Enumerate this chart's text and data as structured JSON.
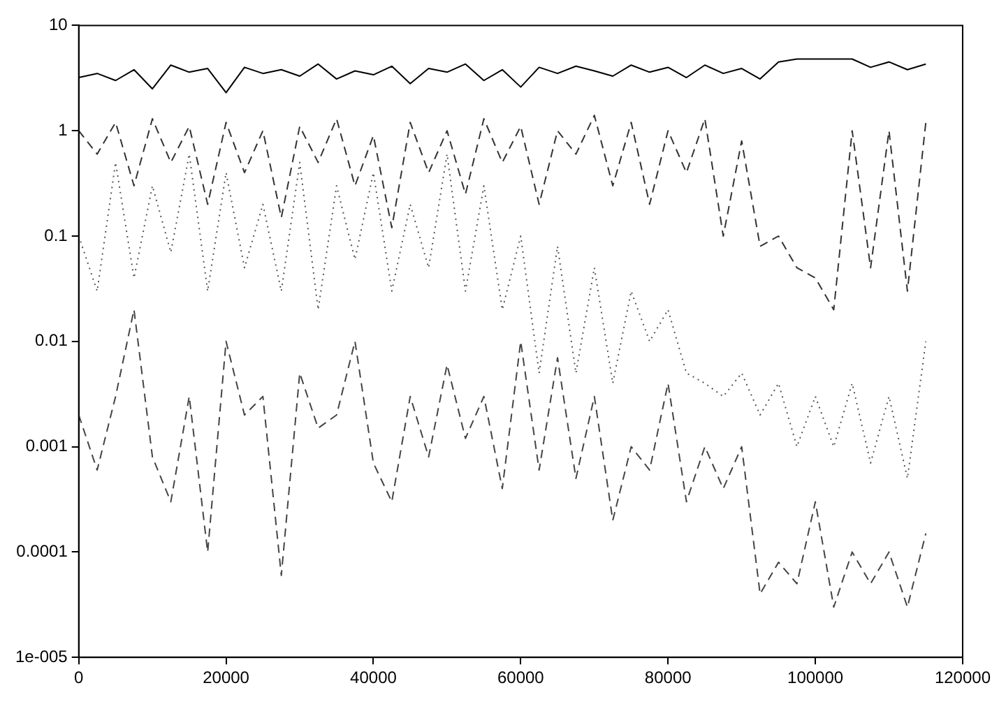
{
  "chart_data": {
    "type": "line",
    "log": "y",
    "grid": false,
    "legend": false,
    "marker": "none",
    "x": [
      0,
      2500,
      5000,
      7500,
      10000,
      12500,
      15000,
      17500,
      20000,
      22500,
      25000,
      27500,
      30000,
      32500,
      35000,
      37500,
      40000,
      42500,
      45000,
      47500,
      50000,
      52500,
      55000,
      57500,
      60000,
      62500,
      65000,
      67500,
      70000,
      72500,
      75000,
      77500,
      80000,
      82500,
      85000,
      87500,
      90000,
      92500,
      95000,
      97500,
      100000,
      102500,
      105000,
      107500,
      110000,
      112500,
      115000
    ],
    "xlim": [
      0,
      120000
    ],
    "xticks": [
      0,
      20000,
      40000,
      60000,
      80000,
      100000,
      120000
    ],
    "ylim": [
      1e-05,
      10
    ],
    "yticks": [
      {
        "value": 1e-05,
        "label": "1e-005"
      },
      0.0001,
      0.001,
      0.01,
      0.1,
      1,
      10
    ],
    "series": [
      {
        "color": "#000000",
        "line_style": "solid",
        "values": [
          3.2,
          3.5,
          3.0,
          3.8,
          2.5,
          4.2,
          3.6,
          3.9,
          2.3,
          4.0,
          3.5,
          3.8,
          3.3,
          4.3,
          3.1,
          3.7,
          3.4,
          4.1,
          2.8,
          3.9,
          3.6,
          4.3,
          3.0,
          3.8,
          2.6,
          4.0,
          3.5,
          4.1,
          3.7,
          3.3,
          4.2,
          3.6,
          4.0,
          3.2,
          4.2,
          3.5,
          3.9,
          3.1,
          4.5,
          4.8,
          4.8,
          4.8,
          4.8,
          4.0,
          4.5,
          3.8,
          4.3
        ]
      },
      {
        "color": "#333333",
        "line_style": "dashed",
        "values": [
          1.0,
          0.6,
          1.2,
          0.3,
          1.3,
          0.5,
          1.1,
          0.2,
          1.2,
          0.4,
          1.0,
          0.15,
          1.1,
          0.5,
          1.3,
          0.3,
          0.9,
          0.12,
          1.2,
          0.4,
          1.0,
          0.25,
          1.3,
          0.5,
          1.1,
          0.2,
          1.0,
          0.6,
          1.4,
          0.3,
          1.2,
          0.2,
          1.0,
          0.4,
          1.3,
          0.1,
          0.8,
          0.08,
          0.1,
          0.05,
          0.04,
          0.02,
          1.0,
          0.05,
          1.0,
          0.03,
          1.2
        ]
      },
      {
        "color": "#555555",
        "line_style": "dotted",
        "values": [
          0.1,
          0.03,
          0.5,
          0.04,
          0.3,
          0.07,
          0.6,
          0.03,
          0.4,
          0.05,
          0.2,
          0.03,
          0.5,
          0.02,
          0.3,
          0.06,
          0.4,
          0.03,
          0.2,
          0.05,
          0.6,
          0.03,
          0.3,
          0.02,
          0.1,
          0.005,
          0.08,
          0.005,
          0.05,
          0.004,
          0.03,
          0.01,
          0.02,
          0.005,
          0.004,
          0.003,
          0.005,
          0.002,
          0.004,
          0.001,
          0.003,
          0.001,
          0.004,
          0.0007,
          0.003,
          0.0005,
          0.01
        ]
      },
      {
        "color": "#444444",
        "line_style": "dashed",
        "values": [
          0.002,
          0.0006,
          0.003,
          0.02,
          0.0008,
          0.0003,
          0.003,
          0.0001,
          0.01,
          0.002,
          0.003,
          6e-05,
          0.005,
          0.0015,
          0.002,
          0.01,
          0.0007,
          0.0003,
          0.003,
          0.0008,
          0.006,
          0.0012,
          0.003,
          0.0004,
          0.01,
          0.0006,
          0.007,
          0.0005,
          0.003,
          0.0002,
          0.001,
          0.0006,
          0.004,
          0.0003,
          0.001,
          0.0004,
          0.001,
          4e-05,
          8e-05,
          5e-05,
          0.0003,
          3e-05,
          0.0001,
          5e-05,
          0.0001,
          3e-05,
          0.00015
        ]
      }
    ]
  }
}
